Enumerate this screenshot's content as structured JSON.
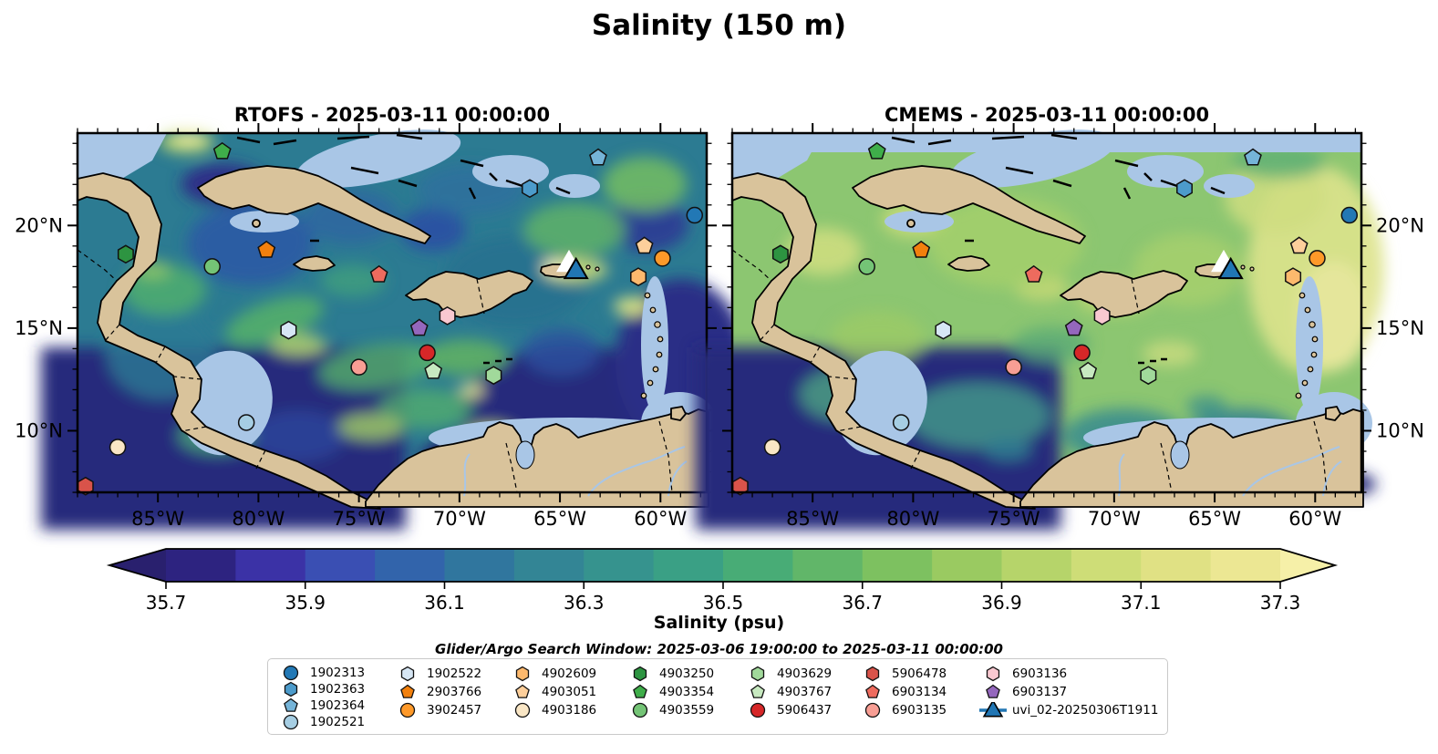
{
  "title": "Salinity (150 m)",
  "panels": [
    {
      "name": "RTOFS",
      "title": "RTOFS - 2025-03-11 00:00:00",
      "lat_label_side": "left"
    },
    {
      "name": "CMEMS",
      "title": "CMEMS - 2025-03-11 00:00:00",
      "lat_label_side": "right"
    }
  ],
  "search_window": "Glider/Argo Search Window: 2025-03-06 19:00:00 to 2025-03-11 00:00:00",
  "chart_data": {
    "type": "heatmap",
    "title": "Salinity (150 m)",
    "panel_titles": [
      "RTOFS - 2025-03-11 00:00:00",
      "CMEMS - 2025-03-11 00:00:00"
    ],
    "lon_range": [
      -89.0,
      -57.7
    ],
    "lat_range": [
      7.0,
      24.5
    ],
    "lon_ticks": {
      "values": [
        -85,
        -80,
        -75,
        -70,
        -65,
        -60
      ],
      "labels": [
        "85°W",
        "80°W",
        "75°W",
        "70°W",
        "65°W",
        "60°W"
      ]
    },
    "lat_ticks": {
      "values": [
        20,
        15,
        10
      ],
      "labels": [
        "20°N",
        "15°N",
        "10°N"
      ]
    },
    "colorbar": {
      "label": "Salinity (psu)",
      "min": 35.7,
      "max": 37.3,
      "level_step": 0.1,
      "tick_values": [
        35.7,
        35.9,
        36.1,
        36.3,
        36.5,
        36.7,
        36.9,
        37.1,
        37.3
      ],
      "tick_labels": [
        "35.7",
        "35.9",
        "36.1",
        "36.3",
        "36.5",
        "36.7",
        "36.9",
        "37.1",
        "37.3"
      ],
      "colors": [
        "#2d2380",
        "#3b32a6",
        "#3a4fb3",
        "#3264ab",
        "#30769e",
        "#338595",
        "#36938e",
        "#3aa085",
        "#48ac76",
        "#61b669",
        "#7dc160",
        "#9aca61",
        "#b6d46a",
        "#cedd77",
        "#e0e184",
        "#ece793"
      ],
      "under_color": "#29206e",
      "over_color": "#f6f0a8"
    },
    "floats": [
      {
        "id": "1902313",
        "shape": "circle",
        "color": "#2278b5",
        "lon": -58.3,
        "lat": 20.5
      },
      {
        "id": "1902363",
        "shape": "hexagon",
        "color": "#4c9bcb",
        "lon": -66.5,
        "lat": 21.8
      },
      {
        "id": "1902364",
        "shape": "pentagon",
        "color": "#75b4d8",
        "lon": -63.1,
        "lat": 23.3
      },
      {
        "id": "1902521",
        "shape": "circle",
        "color": "#a6cee3",
        "lon": -80.6,
        "lat": 10.4
      },
      {
        "id": "1902522",
        "shape": "hexagon",
        "color": "#d6e6f4",
        "lon": -78.5,
        "lat": 14.9
      },
      {
        "id": "2903766",
        "shape": "pentagon",
        "color": "#f2800d",
        "lon": -79.6,
        "lat": 18.8
      },
      {
        "id": "3902457",
        "shape": "circle",
        "color": "#fe9929",
        "lon": -59.9,
        "lat": 18.4
      },
      {
        "id": "4902609",
        "shape": "hexagon",
        "color": "#fdb96d",
        "lon": -61.1,
        "lat": 17.5
      },
      {
        "id": "4903051",
        "shape": "pentagon",
        "color": "#fdcf9b",
        "lon": -60.8,
        "lat": 19.0
      },
      {
        "id": "4903186",
        "shape": "circle",
        "color": "#f9e6c5",
        "lon": -87.0,
        "lat": 9.2
      },
      {
        "id": "4903250",
        "shape": "hexagon",
        "color": "#2d9441",
        "lon": -86.6,
        "lat": 18.6
      },
      {
        "id": "4903354",
        "shape": "pentagon",
        "color": "#3fae4a",
        "lon": -81.8,
        "lat": 23.6
      },
      {
        "id": "4903559",
        "shape": "circle",
        "color": "#74c476",
        "lon": -82.3,
        "lat": 18.0
      },
      {
        "id": "4903629",
        "shape": "hexagon",
        "color": "#a1d99b",
        "lon": -68.3,
        "lat": 12.7
      },
      {
        "id": "4903767",
        "shape": "pentagon",
        "color": "#c7e9c0",
        "lon": -71.3,
        "lat": 12.9
      },
      {
        "id": "5906437",
        "shape": "circle",
        "color": "#d62728",
        "lon": -71.6,
        "lat": 13.8
      },
      {
        "id": "5906478",
        "shape": "hexagon",
        "color": "#d9534a",
        "lon": -88.6,
        "lat": 7.3
      },
      {
        "id": "6903134",
        "shape": "pentagon",
        "color": "#ee6b5e",
        "lon": -74.0,
        "lat": 17.6
      },
      {
        "id": "6903135",
        "shape": "circle",
        "color": "#f89e94",
        "lon": -75.0,
        "lat": 13.1
      },
      {
        "id": "6903136",
        "shape": "hexagon",
        "color": "#f9c8d0",
        "lon": -70.6,
        "lat": 15.6
      },
      {
        "id": "6903137",
        "shape": "pentagon",
        "color": "#9467bd",
        "lon": -72.0,
        "lat": 15.0
      }
    ],
    "gliders": [
      {
        "id": "",
        "shape": "triangle",
        "color": "#ffffff",
        "lon": -64.55,
        "lat": 18.1
      },
      {
        "id": "uvi_02-20250306T1911",
        "shape": "triangle",
        "color": "#2176b4",
        "lon": -64.2,
        "lat": 17.75
      }
    ]
  },
  "legend": {
    "columns": [
      [
        "1902313",
        "1902363",
        "1902364",
        "1902521"
      ],
      [
        "1902522",
        "2903766",
        "3902457"
      ],
      [
        "4902609",
        "4903051",
        "4903186"
      ],
      [
        "4903250",
        "4903354",
        "4903559"
      ],
      [
        "4903629",
        "4903767",
        "5906437"
      ],
      [
        "5906478",
        "6903134",
        "6903135"
      ],
      [
        "6903136",
        "6903137",
        "uvi_02-20250306T1911"
      ]
    ]
  }
}
